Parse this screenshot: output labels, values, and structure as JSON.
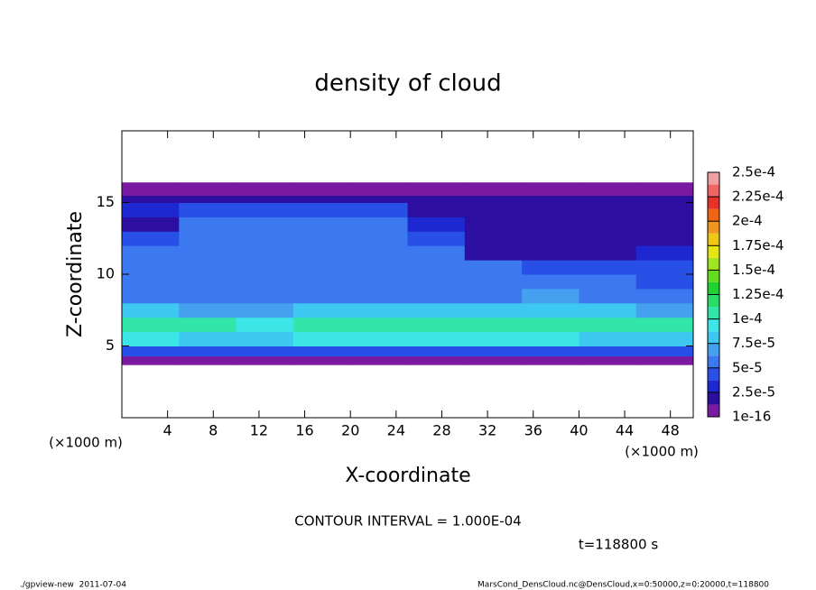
{
  "chart_data": {
    "type": "heatmap",
    "title": "density of cloud",
    "xlabel": "X-coordinate",
    "ylabel": "Z-coordinate",
    "x_unit": "(×1000 m)",
    "y_unit": "(×1000 m)",
    "contour_note": "CONTOUR INTERVAL = 1.000E-04",
    "time_note": "t=118800 s",
    "footer_left": "./gpview-new  2011-07-04",
    "footer_right": "MarsCond_DensCloud.nc@DensCloud,x=0:50000,z=0:20000,t=118800",
    "xlim": [
      0,
      50
    ],
    "ylim": [
      0,
      20
    ],
    "xticks": [
      4,
      8,
      12,
      16,
      20,
      24,
      28,
      32,
      36,
      40,
      44,
      48
    ],
    "yticks": [
      5,
      10,
      15
    ],
    "x_edges": [
      0,
      5,
      10,
      15,
      20,
      25,
      30,
      35,
      40,
      45,
      50
    ],
    "y_edges": [
      3.7,
      4.3,
      5,
      6,
      7,
      8,
      9,
      10,
      11,
      12,
      13,
      14,
      15,
      15.5,
      16.4
    ],
    "values": [
      [
        1e-05,
        1e-05,
        1e-05,
        1e-05,
        1e-05,
        1e-05,
        1e-05,
        1e-05,
        1e-05,
        1e-05
      ],
      [
        4e-05,
        4e-05,
        4e-05,
        4e-05,
        4e-05,
        4e-05,
        4e-05,
        4e-05,
        4e-05,
        4e-05
      ],
      [
        9e-05,
        8e-05,
        8e-05,
        9e-05,
        9e-05,
        9e-05,
        9e-05,
        9e-05,
        8e-05,
        8e-05
      ],
      [
        0.00011,
        0.000105,
        9e-05,
        0.000105,
        0.00011,
        0.00011,
        0.000105,
        0.000105,
        0.0001,
        0.0001
      ],
      [
        8e-05,
        7e-05,
        7e-05,
        8e-05,
        8e-05,
        8e-05,
        8e-05,
        8e-05,
        8e-05,
        7e-05
      ],
      [
        6e-05,
        6e-05,
        6e-05,
        6e-05,
        6e-05,
        6e-05,
        6e-05,
        7e-05,
        6e-05,
        5e-05
      ],
      [
        5e-05,
        6e-05,
        6e-05,
        6e-05,
        6e-05,
        6e-05,
        5e-05,
        5e-05,
        5e-05,
        4e-05
      ],
      [
        5e-05,
        6e-05,
        6e-05,
        6e-05,
        6e-05,
        5e-05,
        5e-05,
        4e-05,
        4e-05,
        4e-05
      ],
      [
        5e-05,
        6e-05,
        6e-05,
        6e-05,
        6e-05,
        5e-05,
        2e-05,
        2e-05,
        2e-05,
        3e-05
      ],
      [
        4e-05,
        5e-05,
        6e-05,
        6e-05,
        5e-05,
        4e-05,
        2e-05,
        2e-05,
        2e-05,
        2e-05
      ],
      [
        2e-05,
        5e-05,
        5e-05,
        5e-05,
        5e-05,
        3e-05,
        2e-05,
        2e-05,
        2e-05,
        2e-05
      ],
      [
        3e-05,
        4e-05,
        4e-05,
        4e-05,
        4e-05,
        2e-05,
        2e-05,
        2e-05,
        2e-05,
        2e-05
      ],
      [
        2e-05,
        2e-05,
        2e-05,
        2e-05,
        2e-05,
        2e-05,
        2e-05,
        2e-05,
        2e-05,
        2e-05
      ],
      [
        1e-05,
        1e-05,
        1e-05,
        1e-05,
        1e-05,
        1e-05,
        1e-05,
        1e-05,
        1e-05,
        1e-05
      ]
    ],
    "colorbar_ticks": [
      {
        "value": 1e-16,
        "label": "1e-16"
      },
      {
        "value": 2.5e-05,
        "label": "2.5e-5"
      },
      {
        "value": 5e-05,
        "label": "5e-5"
      },
      {
        "value": 7.5e-05,
        "label": "7.5e-5"
      },
      {
        "value": 0.0001,
        "label": "1e-4"
      },
      {
        "value": 0.000125,
        "label": "1.25e-4"
      },
      {
        "value": 0.00015,
        "label": "1.5e-4"
      },
      {
        "value": 0.000175,
        "label": "1.75e-4"
      },
      {
        "value": 0.0002,
        "label": "2e-4"
      },
      {
        "value": 0.000225,
        "label": "2.25e-4"
      },
      {
        "value": 0.00025,
        "label": "2.5e-4"
      }
    ],
    "colors": [
      "#7a1aa0",
      "#2c0fa0",
      "#1e28d2",
      "#2850e6",
      "#3c78f0",
      "#46a0f0",
      "#3cc8f0",
      "#3ce6e6",
      "#32e6aa",
      "#28dc64",
      "#1ed232",
      "#64dc1e",
      "#a0e61e",
      "#e6e614",
      "#f0c814",
      "#f0961e",
      "#f06414",
      "#e63228",
      "#f06464",
      "#f0a0a0"
    ]
  }
}
